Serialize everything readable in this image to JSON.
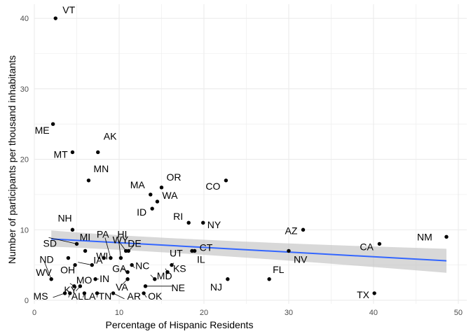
{
  "chart_data": {
    "type": "scatter",
    "title": "",
    "xlabel": "Percentage of Hispanic Residents",
    "ylabel": "Number of participants per thousand inhabitants",
    "xlim": [
      0,
      51
    ],
    "ylim": [
      -0.5,
      42
    ],
    "x_ticks": [
      0,
      10,
      20,
      30,
      40,
      50
    ],
    "x_tick_labels": [
      "0",
      "10",
      "20",
      "30",
      "40",
      "50"
    ],
    "y_ticks": [
      0,
      10,
      20,
      30,
      40
    ],
    "y_tick_labels": [
      "0",
      "10",
      "20",
      "30",
      "40"
    ],
    "grid": true,
    "trend_line": {
      "method": "linear fit with confidence band",
      "x_start": 2.0,
      "x_end": 48.6,
      "y_start": 8.7,
      "y_end": 5.6,
      "band_start": [
        7.6,
        9.9
      ],
      "band_end": [
        3.9,
        7.3
      ],
      "color": "#3366FF",
      "band_color": "#BEBEBE"
    },
    "points": [
      {
        "label": "VT",
        "x": 2.5,
        "y": 40.0
      },
      {
        "label": "ME",
        "x": 2.2,
        "y": 25.0
      },
      {
        "label": "MT",
        "x": 4.5,
        "y": 21.0
      },
      {
        "label": "AK",
        "x": 7.5,
        "y": 21.0
      },
      {
        "label": "MN",
        "x": 6.4,
        "y": 17.0
      },
      {
        "label": "MA",
        "x": 13.7,
        "y": 15.0
      },
      {
        "label": "OR",
        "x": 15.0,
        "y": 16.0
      },
      {
        "label": "WA",
        "x": 14.5,
        "y": 14.0
      },
      {
        "label": "CO",
        "x": 22.6,
        "y": 17.0
      },
      {
        "label": "ID",
        "x": 13.9,
        "y": 13.0
      },
      {
        "label": "RI",
        "x": 18.2,
        "y": 11.0
      },
      {
        "label": "NY",
        "x": 19.9,
        "y": 11.0
      },
      {
        "label": "NH",
        "x": 4.5,
        "y": 10.0
      },
      {
        "label": "AZ",
        "x": 31.7,
        "y": 10.0
      },
      {
        "label": "NM",
        "x": 48.6,
        "y": 9.0
      },
      {
        "label": "CA",
        "x": 40.7,
        "y": 8.0
      },
      {
        "label": "SD",
        "x": 5.0,
        "y": 8.0
      },
      {
        "label": "MI",
        "x": 6.0,
        "y": 7.0
      },
      {
        "label": "PA",
        "x": 9.0,
        "y": 6.0
      },
      {
        "label": "HI",
        "x": 10.2,
        "y": 6.0
      },
      {
        "label": "WY",
        "x": 10.8,
        "y": 7.0
      },
      {
        "label": "DE",
        "x": 11.1,
        "y": 7.0
      },
      {
        "label": "CT",
        "x": 18.9,
        "y": 7.0
      },
      {
        "label": "IL",
        "x": 18.6,
        "y": 7.0
      },
      {
        "label": "NV",
        "x": 30.0,
        "y": 7.0
      },
      {
        "label": "ND",
        "x": 4.0,
        "y": 6.0
      },
      {
        "label": "WI",
        "x": 8.2,
        "y": 6.0
      },
      {
        "label": "NC",
        "x": 11.5,
        "y": 5.0
      },
      {
        "label": "UT",
        "x": 16.2,
        "y": 5.0
      },
      {
        "label": "GA",
        "x": 11.0,
        "y": 4.0
      },
      {
        "label": "WV",
        "x": 2.0,
        "y": 3.0
      },
      {
        "label": "OH",
        "x": 4.8,
        "y": 5.0
      },
      {
        "label": "IA",
        "x": 6.8,
        "y": 5.0
      },
      {
        "label": "MD",
        "x": 14.2,
        "y": 3.0
      },
      {
        "label": "KS",
        "x": 15.7,
        "y": 4.0
      },
      {
        "label": "FL",
        "x": 27.7,
        "y": 3.0
      },
      {
        "label": "NJ",
        "x": 22.8,
        "y": 3.0
      },
      {
        "label": "MO",
        "x": 4.7,
        "y": 2.0
      },
      {
        "label": "IN",
        "x": 7.2,
        "y": 3.0
      },
      {
        "label": "KY",
        "x": 5.4,
        "y": 2.0
      },
      {
        "label": "VA",
        "x": 11.0,
        "y": 3.0
      },
      {
        "label": "NE",
        "x": 13.1,
        "y": 2.0
      },
      {
        "label": "MS",
        "x": 3.6,
        "y": 1.0
      },
      {
        "label": "AL",
        "x": 4.2,
        "y": 1.0
      },
      {
        "label": "LA",
        "x": 5.9,
        "y": 1.0
      },
      {
        "label": "TN",
        "x": 7.4,
        "y": 1.0
      },
      {
        "label": "AR",
        "x": 9.3,
        "y": 1.0
      },
      {
        "label": "OK",
        "x": 12.9,
        "y": 1.0
      },
      {
        "label": "TX",
        "x": 40.1,
        "y": 1.0
      }
    ]
  },
  "colors": {
    "points": "#000000",
    "grid": "#EBEBEB",
    "fit_line": "#3366FF",
    "band": "#BEBEBE"
  }
}
